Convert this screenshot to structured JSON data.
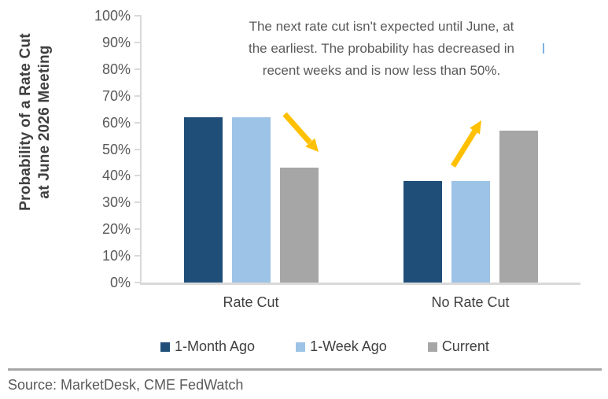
{
  "chart_data": {
    "type": "bar",
    "title": "",
    "ylabel": "Probability of a Rate Cut\nat June 2026 Meeting",
    "xlabel": "",
    "categories": [
      "Rate Cut",
      "No Rate Cut"
    ],
    "series": [
      {
        "name": "1-Month Ago",
        "color": "#1F4E79",
        "values": [
          62,
          38
        ]
      },
      {
        "name": "1-Week Ago",
        "color": "#9DC3E6",
        "values": [
          62,
          38
        ]
      },
      {
        "name": "Current",
        "color": "#A6A6A6",
        "values": [
          43,
          57
        ]
      }
    ],
    "ylim": [
      0,
      100
    ],
    "ytick_step": 10,
    "ytick_suffix": "%",
    "grid": false,
    "legend_position": "bottom",
    "annotation": "The next rate cut isn't expected until June, at\nthe earliest. The probability has decreased in\nrecent weeks and is now less than 50%.",
    "annotations_arrows": [
      {
        "name": "decrease-arrow",
        "direction": "down-right",
        "near_category": "Rate Cut"
      },
      {
        "name": "increase-arrow",
        "direction": "up-right",
        "near_category": "No Rate Cut"
      }
    ]
  },
  "colors": {
    "arrow": "#FFC000",
    "axis": "#D9D9D9",
    "tick_label": "#595959",
    "annotation_text": "#595959",
    "axis_title": "#404040",
    "category_label": "#404040",
    "legend_label": "#404040",
    "divider": "#A6A6A6",
    "source_text": "#595959",
    "cursor_artifact": "#7CB1E3"
  },
  "footer": {
    "source": "Source: MarketDesk, CME FedWatch"
  }
}
